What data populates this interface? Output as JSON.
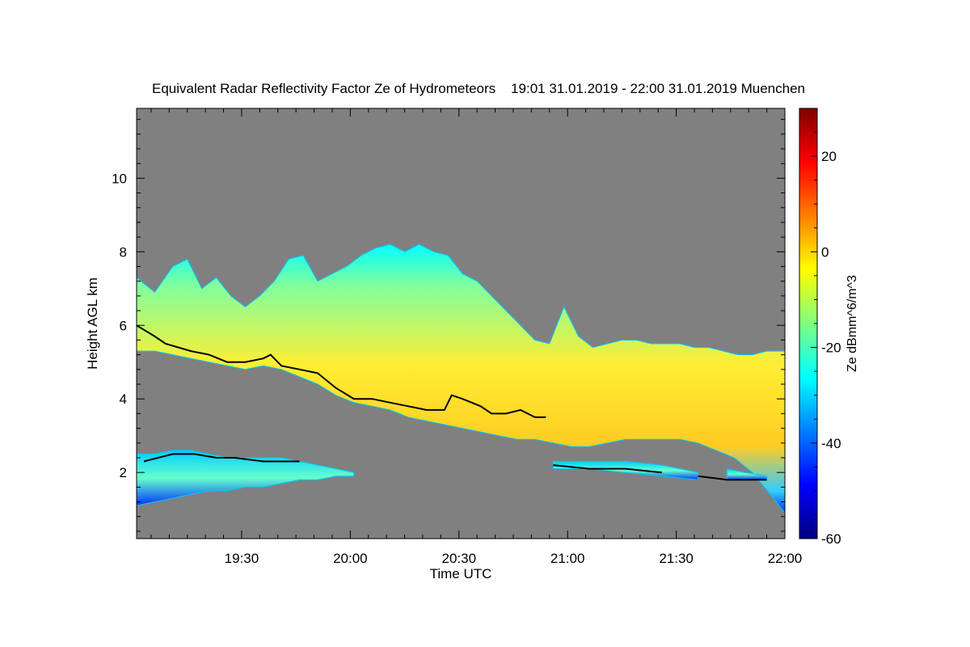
{
  "chart_data": {
    "type": "heatmap",
    "title": "Equivalent Radar Reflectivity Factor Ze of Hydrometeors    19:01 31.01.2019 - 22:00 31.01.2019 Muenchen",
    "xlabel": "Time UTC",
    "ylabel": "Height AGL km",
    "colorbar_label": "Ze dBmm^6/m^3",
    "x_range_minutes": [
      0,
      179
    ],
    "x_ticks": [
      {
        "minute": 29,
        "label": "19:30"
      },
      {
        "minute": 59,
        "label": "20:00"
      },
      {
        "minute": 89,
        "label": "20:30"
      },
      {
        "minute": 119,
        "label": "21:00"
      },
      {
        "minute": 149,
        "label": "21:30"
      },
      {
        "minute": 179,
        "label": "22:00"
      }
    ],
    "ylim": [
      0.2,
      11.9
    ],
    "y_ticks": [
      2,
      4,
      6,
      8,
      10
    ],
    "colorbar_range": [
      -60,
      30
    ],
    "colorbar_ticks": [
      -60,
      -40,
      -20,
      0,
      20
    ],
    "background_color": "#808080",
    "colormap": [
      "#00007f",
      "#0000ff",
      "#007fff",
      "#00ffff",
      "#7fff7f",
      "#ffff00",
      "#ff7f00",
      "#ff0000",
      "#7f0000"
    ],
    "echo_layers": [
      {
        "name": "upper",
        "top_km": [
          [
            0,
            7.3
          ],
          [
            5,
            6.9
          ],
          [
            10,
            7.6
          ],
          [
            14,
            7.8
          ],
          [
            18,
            7.0
          ],
          [
            22,
            7.3
          ],
          [
            26,
            6.8
          ],
          [
            30,
            6.5
          ],
          [
            34,
            6.8
          ],
          [
            38,
            7.2
          ],
          [
            42,
            7.8
          ],
          [
            46,
            7.9
          ],
          [
            50,
            7.2
          ],
          [
            54,
            7.4
          ],
          [
            58,
            7.6
          ],
          [
            62,
            7.9
          ],
          [
            66,
            8.1
          ],
          [
            70,
            8.2
          ],
          [
            74,
            8.0
          ],
          [
            78,
            8.2
          ],
          [
            82,
            8.0
          ],
          [
            86,
            7.9
          ],
          [
            90,
            7.4
          ],
          [
            94,
            7.2
          ],
          [
            98,
            6.8
          ],
          [
            102,
            6.4
          ],
          [
            106,
            6.0
          ],
          [
            110,
            5.6
          ],
          [
            114,
            5.5
          ],
          [
            118,
            6.5
          ],
          [
            122,
            5.7
          ],
          [
            126,
            5.4
          ],
          [
            130,
            5.5
          ],
          [
            134,
            5.6
          ],
          [
            138,
            5.6
          ],
          [
            142,
            5.5
          ],
          [
            146,
            5.5
          ],
          [
            150,
            5.5
          ],
          [
            154,
            5.4
          ],
          [
            158,
            5.4
          ],
          [
            162,
            5.3
          ],
          [
            166,
            5.2
          ],
          [
            170,
            5.2
          ],
          [
            174,
            5.3
          ],
          [
            179,
            5.3
          ]
        ],
        "base_km": [
          [
            0,
            5.3
          ],
          [
            5,
            5.3
          ],
          [
            10,
            5.2
          ],
          [
            15,
            5.1
          ],
          [
            20,
            5.0
          ],
          [
            25,
            4.9
          ],
          [
            30,
            4.8
          ],
          [
            35,
            4.9
          ],
          [
            40,
            4.8
          ],
          [
            45,
            4.6
          ],
          [
            50,
            4.4
          ],
          [
            55,
            4.1
          ],
          [
            60,
            3.9
          ],
          [
            65,
            3.8
          ],
          [
            70,
            3.7
          ],
          [
            75,
            3.5
          ],
          [
            80,
            3.4
          ],
          [
            85,
            3.3
          ],
          [
            90,
            3.2
          ],
          [
            95,
            3.1
          ],
          [
            100,
            3.0
          ],
          [
            105,
            2.9
          ],
          [
            110,
            2.9
          ],
          [
            115,
            2.8
          ],
          [
            120,
            2.7
          ],
          [
            125,
            2.7
          ],
          [
            130,
            2.8
          ],
          [
            135,
            2.9
          ],
          [
            140,
            2.9
          ],
          [
            145,
            2.9
          ],
          [
            150,
            2.9
          ],
          [
            155,
            2.8
          ],
          [
            160,
            2.6
          ],
          [
            165,
            2.4
          ],
          [
            170,
            2.0
          ],
          [
            175,
            1.4
          ],
          [
            179,
            0.9
          ]
        ]
      },
      {
        "name": "low-left",
        "top_km": [
          [
            0,
            2.5
          ],
          [
            5,
            2.5
          ],
          [
            10,
            2.6
          ],
          [
            15,
            2.6
          ],
          [
            20,
            2.5
          ],
          [
            25,
            2.4
          ],
          [
            30,
            2.4
          ],
          [
            35,
            2.4
          ],
          [
            40,
            2.4
          ],
          [
            45,
            2.3
          ],
          [
            50,
            2.2
          ],
          [
            55,
            2.1
          ],
          [
            60,
            2.0
          ]
        ],
        "base_km": [
          [
            0,
            1.1
          ],
          [
            5,
            1.2
          ],
          [
            10,
            1.3
          ],
          [
            15,
            1.4
          ],
          [
            20,
            1.5
          ],
          [
            25,
            1.5
          ],
          [
            30,
            1.6
          ],
          [
            35,
            1.6
          ],
          [
            40,
            1.7
          ],
          [
            45,
            1.8
          ],
          [
            50,
            1.8
          ],
          [
            55,
            1.9
          ],
          [
            60,
            1.9
          ]
        ]
      },
      {
        "name": "low-mid",
        "top_km": [
          [
            115,
            2.3
          ],
          [
            125,
            2.3
          ],
          [
            135,
            2.3
          ],
          [
            145,
            2.2
          ],
          [
            155,
            2.0
          ]
        ],
        "base_km": [
          [
            115,
            2.1
          ],
          [
            125,
            2.1
          ],
          [
            135,
            2.0
          ],
          [
            145,
            1.9
          ],
          [
            155,
            1.8
          ]
        ]
      },
      {
        "name": "low-right",
        "top_km": [
          [
            163,
            2.1
          ],
          [
            168,
            2.0
          ],
          [
            174,
            1.9
          ]
        ],
        "base_km": [
          [
            163,
            1.8
          ],
          [
            168,
            1.8
          ],
          [
            174,
            1.8
          ]
        ]
      }
    ],
    "cloud_base_km": [
      [
        0,
        6.0
      ],
      [
        5,
        5.7
      ],
      [
        8,
        5.5
      ],
      [
        15,
        5.3
      ],
      [
        20,
        5.2
      ],
      [
        25,
        5.0
      ],
      [
        30,
        5.0
      ],
      [
        35,
        5.1
      ],
      [
        37,
        5.2
      ],
      [
        40,
        4.9
      ],
      [
        45,
        4.8
      ],
      [
        50,
        4.7
      ],
      [
        55,
        4.3
      ],
      [
        60,
        4.0
      ],
      [
        65,
        4.0
      ],
      [
        70,
        3.9
      ],
      [
        75,
        3.8
      ],
      [
        80,
        3.7
      ],
      [
        85,
        3.7
      ],
      [
        87,
        4.1
      ],
      [
        90,
        4.0
      ],
      [
        95,
        3.8
      ],
      [
        98,
        3.6
      ],
      [
        102,
        3.6
      ],
      [
        106,
        3.7
      ],
      [
        110,
        3.5
      ],
      [
        113,
        3.5
      ]
    ],
    "cloud_base_low_km": [
      [
        2,
        2.3
      ],
      [
        10,
        2.5
      ],
      [
        16,
        2.5
      ],
      [
        22,
        2.4
      ],
      [
        27,
        2.4
      ],
      [
        35,
        2.3
      ],
      [
        45,
        2.3
      ],
      [
        115,
        2.2
      ],
      [
        125,
        2.1
      ],
      [
        135,
        2.1
      ],
      [
        145,
        2.0
      ],
      [
        155,
        1.9
      ],
      [
        163,
        1.8
      ],
      [
        170,
        1.8
      ],
      [
        174,
        1.8
      ]
    ]
  }
}
